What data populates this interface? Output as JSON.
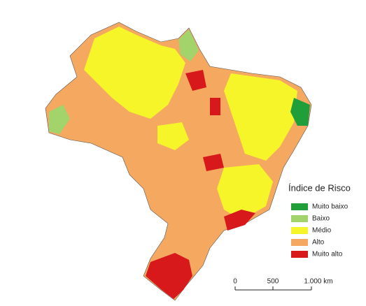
{
  "legend": {
    "title": "Índice de Risco",
    "items": [
      {
        "label": "Muito baixo",
        "color": "#1f9e3a"
      },
      {
        "label": "Baixo",
        "color": "#a3d36b"
      },
      {
        "label": "Médio",
        "color": "#f5f52a"
      },
      {
        "label": "Alto",
        "color": "#f4a860"
      },
      {
        "label": "Muito alto",
        "color": "#d7191c"
      }
    ]
  },
  "scale_bar": {
    "labels": [
      "0",
      "500",
      "1.000 km"
    ]
  }
}
